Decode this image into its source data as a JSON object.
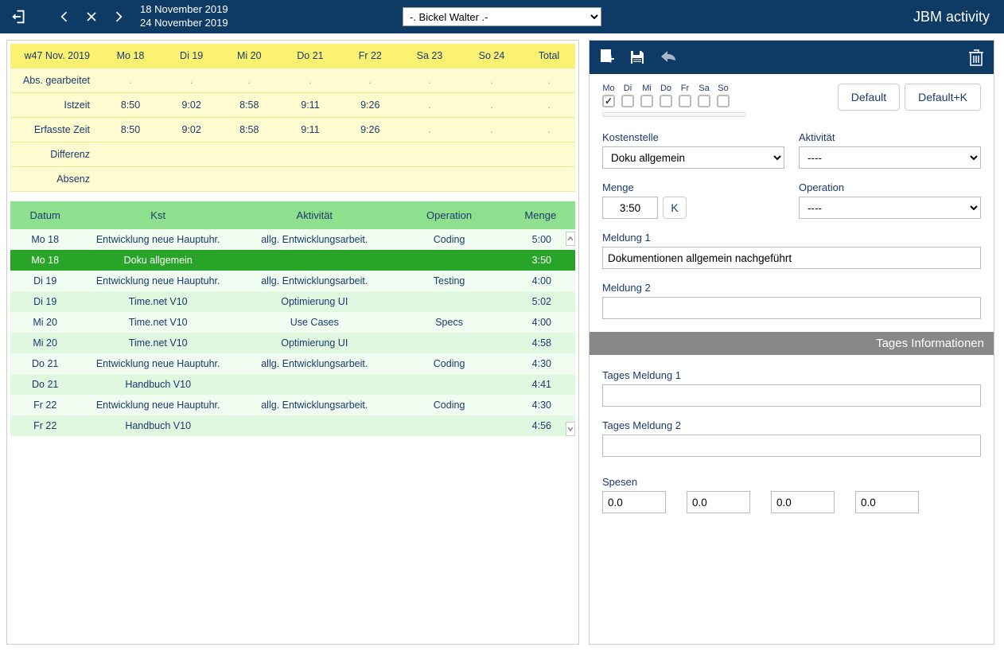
{
  "header": {
    "date_start": "18 November 2019",
    "date_end": "24 November 2019",
    "user_selected": "-. Bickel Walter .-",
    "app_title": "JBM activity"
  },
  "summary": {
    "week_label": "w47 Nov. 2019",
    "day_headers": [
      "Mo 18",
      "Di 19",
      "Mi 20",
      "Do 21",
      "Fr 22",
      "Sa 23",
      "So 24",
      "Total"
    ],
    "rows": [
      {
        "label": "Abs. gearbeitet",
        "values": [
          ".",
          ".",
          ".",
          ".",
          ".",
          ".",
          ".",
          "."
        ]
      },
      {
        "label": "Istzeit",
        "values": [
          "8:50",
          "9:02",
          "8:58",
          "9:11",
          "9:26",
          ".",
          ".",
          "."
        ]
      },
      {
        "label": "Erfasste Zeit",
        "values": [
          "8:50",
          "9:02",
          "8:58",
          "9:11",
          "9:26",
          ".",
          ".",
          "."
        ]
      },
      {
        "label": "Differenz",
        "values": [
          "",
          "",
          "",
          "",
          "",
          "",
          "",
          ""
        ]
      },
      {
        "label": "Absenz",
        "values": [
          "",
          "",
          "",
          "",
          "",
          "",
          "",
          ""
        ]
      }
    ]
  },
  "activities": {
    "headers": [
      "Datum",
      "Kst",
      "Aktivität",
      "Operation",
      "Menge"
    ],
    "rows": [
      {
        "d": "Mo 18",
        "k": "Entwicklung neue Hauptuhr.",
        "a": "allg. Entwicklungsarbeit.",
        "o": "Coding",
        "m": "5:00",
        "sel": false
      },
      {
        "d": "Mo 18",
        "k": "Doku allgemein",
        "a": "",
        "o": "",
        "m": "3:50",
        "sel": true
      },
      {
        "d": "Di 19",
        "k": "Entwicklung neue Hauptuhr.",
        "a": "allg. Entwicklungsarbeit.",
        "o": "Testing",
        "m": "4:00",
        "sel": false
      },
      {
        "d": "Di 19",
        "k": "Time.net V10",
        "a": "Optimierung UI",
        "o": "",
        "m": "5:02",
        "sel": false
      },
      {
        "d": "Mi 20",
        "k": "Time.net V10",
        "a": "Use Cases",
        "o": "Specs",
        "m": "4:00",
        "sel": false
      },
      {
        "d": "Mi 20",
        "k": "Time.net V10",
        "a": "Optimierung UI",
        "o": "",
        "m": "4:58",
        "sel": false
      },
      {
        "d": "Do 21",
        "k": "Entwicklung neue Hauptuhr.",
        "a": "allg. Entwicklungsarbeit.",
        "o": "Coding",
        "m": "4:30",
        "sel": false
      },
      {
        "d": "Do 21",
        "k": "Handbuch V10",
        "a": "",
        "o": "",
        "m": "4:41",
        "sel": false
      },
      {
        "d": "Fr 22",
        "k": "Entwicklung neue Hauptuhr.",
        "a": "allg. Entwicklungsarbeit.",
        "o": "Coding",
        "m": "4:30",
        "sel": false
      },
      {
        "d": "Fr 22",
        "k": "Handbuch V10",
        "a": "",
        "o": "",
        "m": "4:56",
        "sel": false
      }
    ]
  },
  "days": {
    "labels": [
      "Mo",
      "Di",
      "Mi",
      "Do",
      "Fr",
      "Sa",
      "So"
    ],
    "checked": [
      true,
      false,
      false,
      false,
      false,
      false,
      false
    ],
    "default_btn": "Default",
    "defaultk_btn": "Default+K"
  },
  "form": {
    "kostenstelle_label": "Kostenstelle",
    "kostenstelle_value": "Doku allgemein",
    "aktivitaet_label": "Aktivität",
    "aktivitaet_value": "----",
    "menge_label": "Menge",
    "menge_value": "3:50",
    "menge_k": "K",
    "operation_label": "Operation",
    "operation_value": "----",
    "meldung1_label": "Meldung 1",
    "meldung1_value": "Dokumentionen allgemein nachgeführt",
    "meldung2_label": "Meldung 2",
    "meldung2_value": ""
  },
  "tages_info": {
    "title": "Tages Informationen",
    "tm1_label": "Tages Meldung 1",
    "tm1_value": "",
    "tm2_label": "Tages Meldung 2",
    "tm2_value": "",
    "spesen_label": "Spesen",
    "spesen_values": [
      "0.0",
      "0.0",
      "0.0",
      "0.0"
    ]
  }
}
